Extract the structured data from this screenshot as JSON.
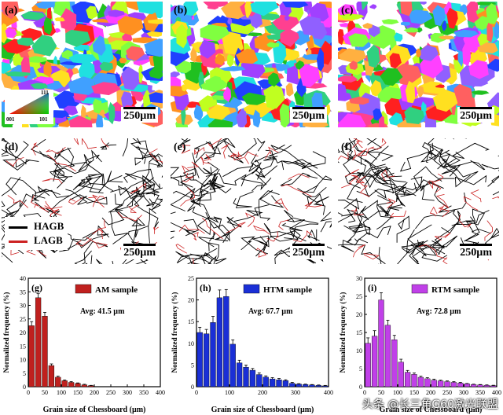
{
  "figure": {
    "maps": [
      {
        "label": "(a)",
        "scale": "250µm"
      },
      {
        "label": "(b)",
        "scale": "250µm"
      },
      {
        "label": "(c)",
        "scale": "250µm"
      }
    ],
    "ipf_legend": {
      "corners": [
        "001",
        "101",
        "111"
      ]
    },
    "boundary_maps": [
      {
        "label": "(d)",
        "scale": "250µm"
      },
      {
        "label": "(e)",
        "scale": "250µm"
      },
      {
        "label": "(f)",
        "scale": "250µm"
      }
    ],
    "gb_legend": {
      "hagb": "HAGB",
      "lagb": "LAGB",
      "hagb_color": "#000000",
      "lagb_color": "#cc2222"
    }
  },
  "chart_data": [
    {
      "type": "bar",
      "label": "(g)",
      "legend": "AM sample",
      "avg": "Avg: 41.5 µm",
      "color": "#c0201e",
      "xlabel": "Grain size of Chessboard (µm)",
      "ylabel": "Normalized frequency (%)",
      "xlim": [
        0,
        400
      ],
      "ylim": [
        0,
        40
      ],
      "xticks": [
        0,
        50,
        100,
        150,
        200,
        250,
        300,
        350,
        400
      ],
      "yticks": [
        0,
        5,
        10,
        15,
        20,
        25,
        30,
        35,
        40
      ],
      "x": [
        10,
        30,
        50,
        70,
        90,
        110,
        130,
        150,
        170,
        190
      ],
      "values": [
        22.5,
        32.8,
        26.0,
        7.8,
        3.5,
        2.2,
        1.6,
        1.2,
        0.7,
        0.4
      ],
      "errors": [
        1.5,
        1.5,
        1.4,
        0.6,
        0.4,
        0.3,
        0.3,
        0.2,
        0.2,
        0.1
      ]
    },
    {
      "type": "bar",
      "label": "(h)",
      "legend": "HTM sample",
      "avg": "Avg: 67.7 µm",
      "color": "#1a2fd6",
      "xlabel": "Grain size of Chessboard (µm)",
      "ylabel": "Normalized frequency (%)",
      "xlim": [
        0,
        400
      ],
      "ylim": [
        0,
        25
      ],
      "xticks": [
        0,
        100,
        200,
        300,
        400
      ],
      "yticks": [
        0,
        5,
        10,
        15,
        20,
        25
      ],
      "x": [
        10,
        30,
        50,
        70,
        90,
        110,
        130,
        150,
        170,
        190,
        210,
        230,
        250,
        270,
        290,
        310,
        330,
        350,
        370,
        390
      ],
      "values": [
        12.5,
        12.2,
        14.8,
        20.5,
        20.8,
        9.8,
        5.5,
        4.5,
        3.8,
        2.8,
        2.2,
        1.8,
        1.6,
        1.4,
        0.8,
        0.6,
        0.5,
        0.4,
        0.3,
        0.2
      ],
      "errors": [
        1.2,
        1.0,
        1.4,
        1.8,
        1.6,
        1.0,
        0.6,
        0.5,
        0.4,
        0.4,
        0.3,
        0.3,
        0.3,
        0.2,
        0.2,
        0.1,
        0.1,
        0.1,
        0.1,
        0.1
      ]
    },
    {
      "type": "bar",
      "label": "(i)",
      "legend": "RTM sample",
      "avg": "Avg: 72.8 µm",
      "color": "#c040e8",
      "xlabel": "Grain size of Chessboard (µm)",
      "ylabel": "Normalized frequency (%)",
      "xlim": [
        0,
        400
      ],
      "ylim": [
        0,
        30
      ],
      "xticks": [
        0,
        50,
        100,
        150,
        200,
        250,
        300,
        350,
        400
      ],
      "yticks": [
        0,
        5,
        10,
        15,
        20,
        25,
        30
      ],
      "x": [
        10,
        30,
        50,
        70,
        90,
        110,
        130,
        150,
        170,
        190,
        210,
        230,
        250,
        270,
        290,
        310,
        330,
        350,
        370,
        390
      ],
      "values": [
        12.0,
        14.0,
        24.0,
        17.0,
        13.0,
        6.8,
        4.0,
        3.4,
        2.6,
        2.2,
        1.8,
        1.6,
        1.4,
        1.2,
        1.0,
        0.8,
        0.6,
        0.5,
        0.4,
        0.3
      ],
      "errors": [
        1.5,
        1.5,
        2.0,
        1.4,
        1.2,
        0.8,
        0.5,
        0.4,
        0.3,
        0.3,
        0.3,
        0.2,
        0.2,
        0.2,
        0.2,
        0.1,
        0.1,
        0.1,
        0.1,
        0.1
      ]
    }
  ],
  "watermark": "头条 @长三角G60激光联盟"
}
